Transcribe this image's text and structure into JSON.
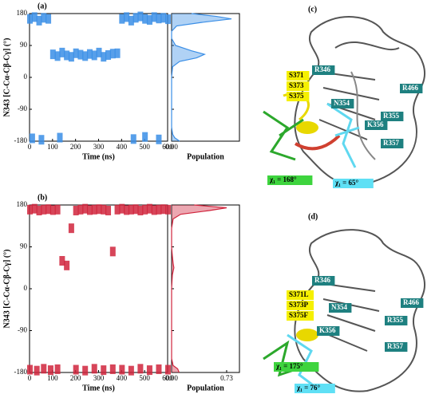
{
  "chart_data": [
    {
      "type": "scatter",
      "label": "(a)",
      "ylabel": "N343 [C-Cα-Cβ-Cγ] (°)",
      "xlabel": "Time (ns)",
      "color": "#3a8ee6",
      "x": [
        0,
        20,
        40,
        60,
        80,
        100,
        120,
        140,
        160,
        180,
        200,
        220,
        240,
        260,
        280,
        300,
        320,
        340,
        360,
        380,
        400,
        420,
        440,
        460,
        480,
        500,
        520,
        540,
        560,
        580,
        600,
        10,
        50,
        130,
        450,
        500,
        560
      ],
      "values": [
        165,
        170,
        160,
        168,
        165,
        65,
        60,
        70,
        62,
        58,
        68,
        64,
        60,
        66,
        62,
        70,
        58,
        63,
        67,
        68,
        165,
        170,
        160,
        168,
        172,
        165,
        162,
        170,
        166,
        168,
        164,
        -172,
        -176,
        -170,
        -174,
        -168,
        -175
      ],
      "xlim": [
        0,
        600
      ],
      "xticks": [
        0,
        100,
        200,
        300,
        400,
        500,
        600
      ],
      "ylim": [
        -180,
        180
      ],
      "yticks": [
        180,
        90,
        0,
        -90,
        -180
      ]
    },
    {
      "type": "density",
      "xlabel": "Population",
      "color": "#3a8ee6",
      "y": [
        -180,
        -170,
        -160,
        -140,
        -100,
        -50,
        0,
        30,
        45,
        55,
        65,
        75,
        90,
        110,
        130,
        145,
        155,
        165,
        172,
        180
      ],
      "values": [
        0.08,
        0.03,
        0.01,
        0,
        0,
        0,
        0,
        0.01,
        0.08,
        0.25,
        0.33,
        0.2,
        0.04,
        0,
        0,
        0.05,
        0.3,
        0.6,
        0.45,
        0.2
      ],
      "xlim": [
        0,
        0.68
      ],
      "xticks": [
        {
          "value": 0,
          "label": "0.00"
        }
      ],
      "ylim": [
        -180,
        180
      ],
      "yticks": [
        180,
        90,
        0,
        -90,
        -180
      ]
    },
    {
      "type": "scatter",
      "label": "(b)",
      "ylabel": "N343 [C-Cα-Cβ-Cγ] (°)",
      "xlabel": "Time (ns)",
      "color": "#d0243c",
      "x": [
        0,
        20,
        40,
        60,
        80,
        100,
        120,
        140,
        160,
        180,
        200,
        220,
        240,
        260,
        280,
        300,
        320,
        340,
        360,
        380,
        400,
        420,
        440,
        460,
        480,
        500,
        520,
        540,
        560,
        580,
        600,
        0,
        30,
        60,
        90,
        120,
        200,
        240,
        280,
        320,
        360,
        400,
        440,
        480,
        520,
        560,
        600
      ],
      "values": [
        170,
        172,
        168,
        170,
        171,
        169,
        170,
        60,
        50,
        130,
        168,
        170,
        172,
        169,
        170,
        171,
        170,
        168,
        80,
        170,
        172,
        169,
        170,
        171,
        168,
        170,
        172,
        169,
        170,
        171,
        170,
        -174,
        -176,
        -172,
        -175,
        -173,
        -174,
        -176,
        -172,
        -175,
        -173,
        -174,
        -176,
        -172,
        -175,
        -173,
        -174
      ],
      "xlim": [
        0,
        600
      ],
      "xticks": [
        0,
        100,
        200,
        300,
        400,
        500,
        600
      ],
      "ylim": [
        -180,
        180
      ],
      "yticks": [
        180,
        90,
        0,
        -90,
        -180
      ]
    },
    {
      "type": "density",
      "xlabel": "Population",
      "color": "#d0243c",
      "y": [
        -180,
        -172,
        -165,
        -150,
        -100,
        -50,
        0,
        30,
        45,
        55,
        70,
        90,
        110,
        130,
        150,
        160,
        168,
        174,
        180
      ],
      "values": [
        0.1,
        0.08,
        0.02,
        0,
        0,
        0,
        0,
        0.01,
        0.03,
        0.02,
        0.01,
        0,
        0,
        0,
        0.02,
        0.12,
        0.5,
        0.73,
        0.3
      ],
      "xlim": [
        0,
        0.9
      ],
      "xticks": [
        {
          "value": 0,
          "label": "0.00"
        },
        0.73
      ],
      "ylim": [
        -180,
        180
      ],
      "yticks": [
        180,
        90,
        0,
        -90,
        -180
      ]
    }
  ],
  "structures": [
    {
      "label": "(c)",
      "residues": [
        "R346",
        "R466",
        "N354",
        "R355",
        "K356",
        "R357"
      ],
      "mutations": [
        "S371",
        "S373",
        "S375"
      ],
      "chi_green": "χ₁ = 168°",
      "chi_cyan": "χ₁ = 65°"
    },
    {
      "label": "(d)",
      "residues": [
        "R346",
        "R466",
        "N354",
        "R355",
        "K356",
        "R357"
      ],
      "mutations": [
        "S371L",
        "S373P",
        "S375F"
      ],
      "chi_green": "χ₁ = 175°",
      "chi_cyan": "χ₁ = 76°"
    }
  ]
}
